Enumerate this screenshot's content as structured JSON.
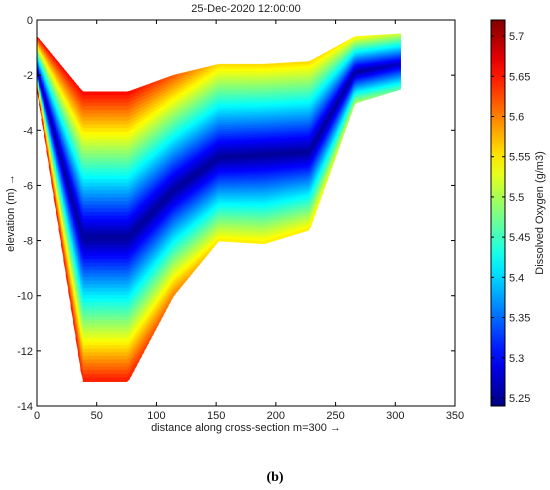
{
  "chart_data": {
    "type": "heatmap",
    "title": "25-Dec-2020 12:00:00",
    "xlabel": "distance along cross-section m=300 →",
    "ylabel": "elevation (m) →",
    "xlim": [
      0,
      350
    ],
    "ylim": [
      -14,
      0
    ],
    "xticks": [
      0,
      50,
      100,
      150,
      200,
      250,
      300,
      350
    ],
    "yticks": [
      0,
      -2,
      -4,
      -6,
      -8,
      -10,
      -12,
      -14
    ],
    "colorbar": {
      "label": "Dissolved Oxygen (g/m3)",
      "range": [
        5.24,
        5.72
      ],
      "ticks": [
        5.25,
        5.3,
        5.35,
        5.4,
        5.45,
        5.5,
        5.55,
        5.6,
        5.65,
        5.7
      ],
      "colormap": "jet"
    },
    "cross_section": {
      "distance": [
        0,
        38,
        76,
        114,
        152,
        190,
        228,
        266,
        304
      ],
      "surface": [
        -0.6,
        -2.6,
        -2.6,
        -2.0,
        -1.6,
        -1.6,
        -1.5,
        -0.6,
        -0.5
      ],
      "bottom": [
        -2.5,
        -13.1,
        -13.1,
        -10.0,
        -8.0,
        -8.1,
        -7.6,
        -3.0,
        -2.5
      ],
      "min_do_elevation": [
        -1.9,
        -7.9,
        -7.9,
        -6.2,
        -5.0,
        -4.9,
        -4.8,
        -1.9,
        -1.6
      ],
      "do_at_surface": [
        5.66,
        5.66,
        5.66,
        5.62,
        5.56,
        5.56,
        5.56,
        5.55,
        5.52
      ],
      "do_at_minimum": [
        5.25,
        5.25,
        5.25,
        5.25,
        5.25,
        5.25,
        5.25,
        5.25,
        5.27
      ],
      "do_at_bottom": [
        5.66,
        5.65,
        5.65,
        5.6,
        5.55,
        5.55,
        5.55,
        5.5,
        5.46
      ]
    }
  },
  "caption": "(b)"
}
